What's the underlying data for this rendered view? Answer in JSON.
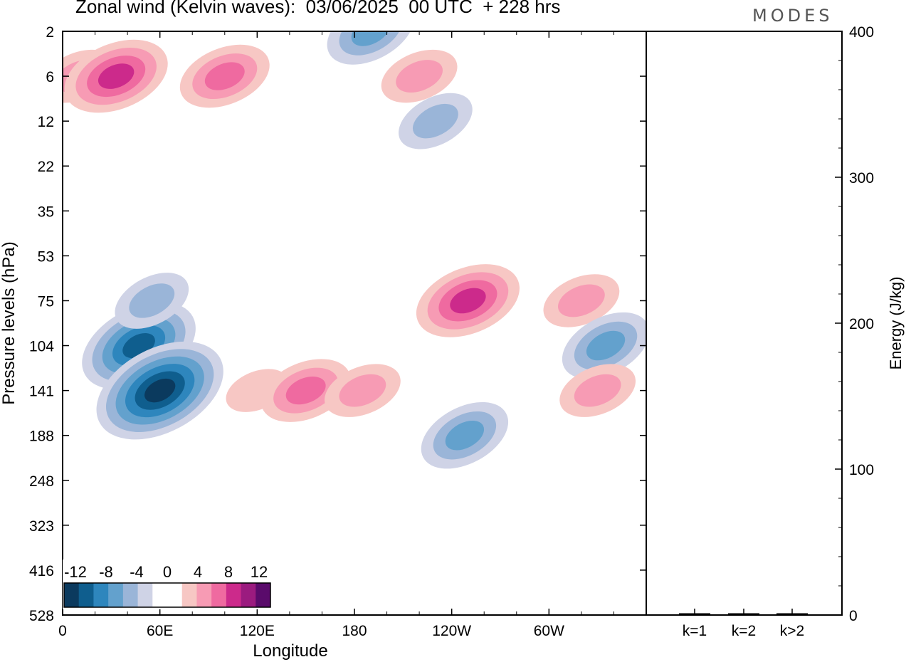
{
  "header": {
    "title": "Zonal wind (Kelvin waves):  03/06/2025  00 UTC  + 228 hrs",
    "logo": "MODES"
  },
  "chart_data": [
    {
      "type": "heatmap",
      "title": "Zonal wind (Kelvin waves):  03/06/2025  00 UTC  + 228 hrs",
      "xlabel": "Longitude",
      "ylabel": "Pressure levels (hPa)",
      "x_ticks": [
        "0",
        "60E",
        "120E",
        "180",
        "120W",
        "60W"
      ],
      "x_tick_degrees": [
        0,
        60,
        120,
        180,
        240,
        300
      ],
      "xlim": [
        0,
        360
      ],
      "y_ticks": [
        "2",
        "6",
        "12",
        "22",
        "35",
        "53",
        "75",
        "104",
        "141",
        "188",
        "248",
        "323",
        "416",
        "528"
      ],
      "y_scale": "categorical model levels",
      "colorbar": {
        "labels": [
          "-12",
          "-8",
          "-4",
          "0",
          "4",
          "8",
          "12"
        ],
        "levels": [
          -14,
          -12,
          -10,
          -8,
          -6,
          -4,
          -2,
          2,
          4,
          6,
          8,
          10,
          12,
          14
        ],
        "colors": [
          "#0b3a5e",
          "#0f5e8e",
          "#2e86bd",
          "#63a1cd",
          "#9ab5d8",
          "#cfd3e6",
          "#ffffff",
          "#ffffff",
          "#f7c7c4",
          "#f79bb4",
          "#ef6aa0",
          "#cc2a8b",
          "#9b1b7f",
          "#5a0b6b"
        ]
      },
      "features": [
        {
          "lon": 10,
          "level": "6",
          "sign": "+",
          "peak": 6
        },
        {
          "lon": 33,
          "level": "6",
          "sign": "+",
          "peak": 10
        },
        {
          "lon": 47,
          "level": "104",
          "sign": "-",
          "peak": -12
        },
        {
          "lon": 60,
          "level": "141",
          "sign": "-",
          "peak": -14
        },
        {
          "lon": 55,
          "level": "75",
          "sign": "-",
          "peak": -6
        },
        {
          "lon": 100,
          "level": "6",
          "sign": "+",
          "peak": 8
        },
        {
          "lon": 120,
          "level": "141",
          "sign": "+",
          "peak": 4
        },
        {
          "lon": 150,
          "level": "141",
          "sign": "+",
          "peak": 8
        },
        {
          "lon": 185,
          "level": "141",
          "sign": "+",
          "peak": 6
        },
        {
          "lon": 190,
          "level": "2",
          "sign": "-",
          "peak": -8
        },
        {
          "lon": 220,
          "level": "6",
          "sign": "+",
          "peak": 6
        },
        {
          "lon": 230,
          "level": "12",
          "sign": "-",
          "peak": -6
        },
        {
          "lon": 250,
          "level": "75",
          "sign": "+",
          "peak": 10
        },
        {
          "lon": 248,
          "level": "188",
          "sign": "-",
          "peak": -8
        },
        {
          "lon": 320,
          "level": "75",
          "sign": "+",
          "peak": 6
        },
        {
          "lon": 335,
          "level": "104",
          "sign": "-",
          "peak": -8
        },
        {
          "lon": 330,
          "level": "141",
          "sign": "+",
          "peak": 6
        }
      ]
    },
    {
      "type": "bar",
      "categories": [
        "k=1",
        "k=2",
        "k>2"
      ],
      "values": [
        0.5,
        0.5,
        0.5
      ],
      "ylabel": "Energy (J/kg)",
      "ylim": [
        0,
        400
      ],
      "y_ticks": [
        "0",
        "100",
        "200",
        "300",
        "400"
      ]
    }
  ]
}
